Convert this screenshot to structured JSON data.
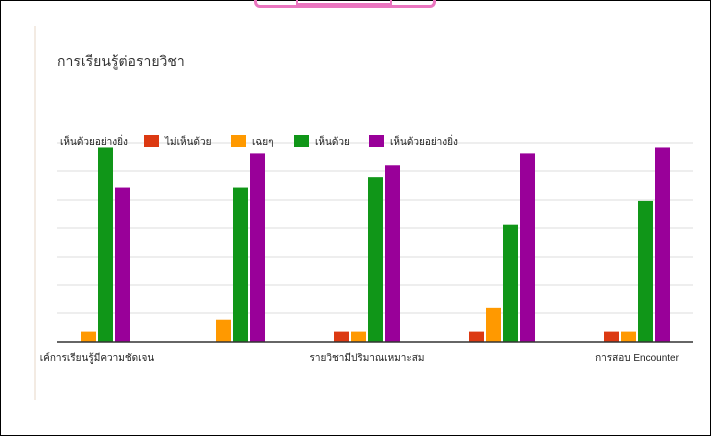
{
  "colors": {
    "frame": "#000000",
    "accent_pink": "#ea75bf",
    "grid": "#dcdcdc",
    "axis": "#333333"
  },
  "chart_data": {
    "type": "bar",
    "title": "การเรียนรู้ต่อรายวิชา",
    "legend_title": "เห็นด้วยอย่างยิ่ง",
    "legend_position": "top",
    "grid": true,
    "categories": [
      "เค์การเรียนรู้มีความชัดเจน",
      "",
      "รายวิชามีปริมาณเหมาะสม",
      "",
      "การสอบ Encounter"
    ],
    "ylim": [
      0,
      6.7
    ],
    "series": [
      {
        "name": "ไม่เห็นด้วย",
        "color": "#dc3912",
        "values": [
          0,
          0,
          0.35,
          0.35,
          0.35
        ]
      },
      {
        "name": "เฉยๆ",
        "color": "#ff9900",
        "values": [
          0.35,
          0.75,
          0.35,
          1.15,
          0.35
        ]
      },
      {
        "name": "เห็นด้วย",
        "color": "#109618",
        "values": [
          6.55,
          5.2,
          5.55,
          3.95,
          4.75
        ]
      },
      {
        "name": "เห็นด้วยอย่างยิ่ง",
        "color": "#990099",
        "values": [
          5.2,
          6.35,
          5.95,
          6.35,
          6.55
        ]
      }
    ]
  }
}
